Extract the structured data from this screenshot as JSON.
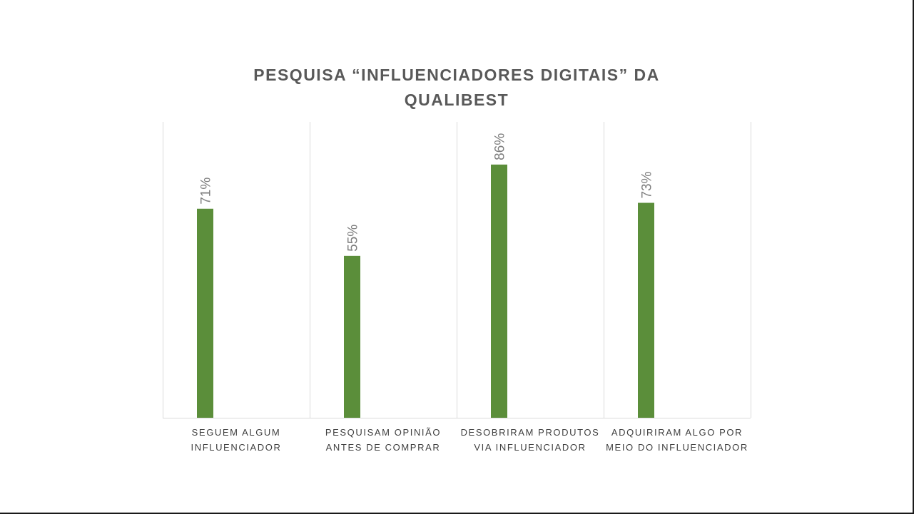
{
  "chart_data": {
    "type": "bar",
    "title": "PESQUISA “INFLUENCIADORES DIGITAIS” DA QUALIBEST",
    "categories": [
      [
        "SEGUEM ALGUM",
        "INFLUENCIADOR"
      ],
      [
        "PESQUISAM OPINIÃO",
        "ANTES DE COMPRAR"
      ],
      [
        "DESOBRIRAM PRODUTOS",
        "VIA INFLUENCIADOR"
      ],
      [
        "ADQUIRIRAM ALGO POR",
        "MEIO DO INFLUENCIADOR"
      ]
    ],
    "values": [
      71,
      55,
      86,
      73
    ],
    "value_labels": [
      "71%",
      "55%",
      "86%",
      "73%"
    ],
    "ylim": [
      0,
      100
    ],
    "grid": "vertical category separators",
    "legend": "none",
    "colors": {
      "bar": "#5b8e3a",
      "gridline": "#d9d9d9",
      "title": "#595959",
      "category_text": "#404040",
      "value_text": "#7f7f7f"
    }
  }
}
